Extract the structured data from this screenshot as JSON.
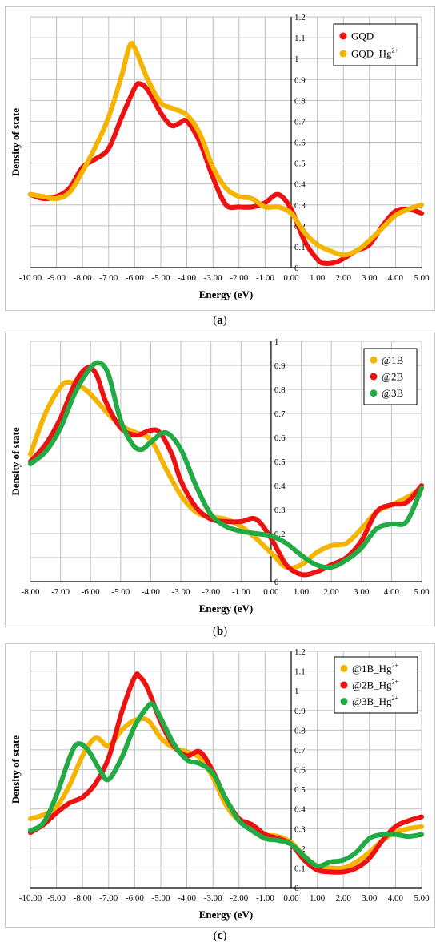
{
  "chart_data": [
    {
      "type": "line",
      "panel_label": "a",
      "xlabel": "Energy (eV)",
      "ylabel": "Density of state",
      "xlim": [
        -10,
        5
      ],
      "ylim": [
        0,
        1.2
      ],
      "xticks": [
        "-10.00",
        "-9.00",
        "-8.00",
        "-7.00",
        "-6.00",
        "-5.00",
        "-4.00",
        "-3.00",
        "-2.00",
        "-1.00",
        "0.00",
        "1.00",
        "2.00",
        "3.00",
        "4.00",
        "5.00"
      ],
      "yticks": [
        "0",
        "0.1",
        "0.2",
        "0.3",
        "0.4",
        "0.5",
        "0.6",
        "0.7",
        "0.8",
        "0.9",
        "1",
        "1.1",
        "1.2"
      ],
      "grid": true,
      "legend": "top-right",
      "series": [
        {
          "name": "GQD",
          "color": "#ee1111",
          "points": [
            [
              -10,
              0.35
            ],
            [
              -9.5,
              0.33
            ],
            [
              -9,
              0.34
            ],
            [
              -8.5,
              0.38
            ],
            [
              -8,
              0.48
            ],
            [
              -7.5,
              0.52
            ],
            [
              -7,
              0.57
            ],
            [
              -6.5,
              0.72
            ],
            [
              -6,
              0.86
            ],
            [
              -5.8,
              0.88
            ],
            [
              -5.5,
              0.85
            ],
            [
              -5,
              0.74
            ],
            [
              -4.6,
              0.68
            ],
            [
              -4.3,
              0.69
            ],
            [
              -4,
              0.7
            ],
            [
              -3.5,
              0.6
            ],
            [
              -3,
              0.43
            ],
            [
              -2.5,
              0.3
            ],
            [
              -2,
              0.29
            ],
            [
              -1.5,
              0.29
            ],
            [
              -1,
              0.31
            ],
            [
              -0.5,
              0.35
            ],
            [
              0,
              0.28
            ],
            [
              0.5,
              0.13
            ],
            [
              1,
              0.04
            ],
            [
              1.3,
              0.02
            ],
            [
              1.8,
              0.03
            ],
            [
              2.5,
              0.08
            ],
            [
              3,
              0.11
            ],
            [
              3.5,
              0.2
            ],
            [
              4,
              0.27
            ],
            [
              4.5,
              0.28
            ],
            [
              5,
              0.26
            ]
          ]
        },
        {
          "name": "GQD_Hg",
          "sup": "2+",
          "color": "#f5b400",
          "points": [
            [
              -10,
              0.35
            ],
            [
              -9.5,
              0.34
            ],
            [
              -9,
              0.33
            ],
            [
              -8.5,
              0.36
            ],
            [
              -8,
              0.46
            ],
            [
              -7.5,
              0.58
            ],
            [
              -7,
              0.72
            ],
            [
              -6.5,
              0.92
            ],
            [
              -6.2,
              1.06
            ],
            [
              -6,
              1.05
            ],
            [
              -5.5,
              0.9
            ],
            [
              -5,
              0.79
            ],
            [
              -4.5,
              0.76
            ],
            [
              -4,
              0.73
            ],
            [
              -3.5,
              0.64
            ],
            [
              -3,
              0.48
            ],
            [
              -2.5,
              0.38
            ],
            [
              -2,
              0.34
            ],
            [
              -1.5,
              0.33
            ],
            [
              -1,
              0.29
            ],
            [
              -0.5,
              0.29
            ],
            [
              0,
              0.26
            ],
            [
              0.5,
              0.17
            ],
            [
              1,
              0.11
            ],
            [
              1.5,
              0.08
            ],
            [
              2,
              0.06
            ],
            [
              2.5,
              0.08
            ],
            [
              3,
              0.13
            ],
            [
              3.5,
              0.19
            ],
            [
              4,
              0.25
            ],
            [
              4.5,
              0.28
            ],
            [
              5,
              0.3
            ]
          ]
        }
      ]
    },
    {
      "type": "line",
      "panel_label": "b",
      "xlabel": "Energy (eV)",
      "ylabel": "Density of state",
      "xlim": [
        -8,
        5
      ],
      "ylim": [
        0,
        1
      ],
      "xticks": [
        "-8.00",
        "-7.00",
        "-6.00",
        "-5.00",
        "-4.00",
        "-3.00",
        "-2.00",
        "-1.00",
        "0.00",
        "1.00",
        "2.00",
        "3.00",
        "4.00",
        "5.00"
      ],
      "yticks": [
        "0",
        "0.1",
        "0.2",
        "0.3",
        "0.4",
        "0.5",
        "0.6",
        "0.7",
        "0.8",
        "0.9",
        "1"
      ],
      "grid": true,
      "legend": "top-right",
      "series": [
        {
          "name": "@1B",
          "color": "#f5b400",
          "points": [
            [
              -8,
              0.53
            ],
            [
              -7.5,
              0.7
            ],
            [
              -7,
              0.81
            ],
            [
              -6.7,
              0.83
            ],
            [
              -6.3,
              0.81
            ],
            [
              -6,
              0.78
            ],
            [
              -5.5,
              0.71
            ],
            [
              -5,
              0.65
            ],
            [
              -4.5,
              0.62
            ],
            [
              -4,
              0.59
            ],
            [
              -3.5,
              0.47
            ],
            [
              -3,
              0.36
            ],
            [
              -2.5,
              0.29
            ],
            [
              -2,
              0.27
            ],
            [
              -1.5,
              0.26
            ],
            [
              -1,
              0.23
            ],
            [
              -0.5,
              0.18
            ],
            [
              0,
              0.12
            ],
            [
              0.5,
              0.06
            ],
            [
              1,
              0.07
            ],
            [
              1.5,
              0.12
            ],
            [
              2,
              0.15
            ],
            [
              2.5,
              0.16
            ],
            [
              3,
              0.22
            ],
            [
              3.5,
              0.29
            ],
            [
              4,
              0.32
            ],
            [
              4.5,
              0.35
            ],
            [
              5,
              0.39
            ]
          ]
        },
        {
          "name": "@2B",
          "color": "#ee1111",
          "points": [
            [
              -8,
              0.5
            ],
            [
              -7.5,
              0.57
            ],
            [
              -7,
              0.68
            ],
            [
              -6.5,
              0.83
            ],
            [
              -6.1,
              0.89
            ],
            [
              -5.8,
              0.86
            ],
            [
              -5.5,
              0.75
            ],
            [
              -5,
              0.64
            ],
            [
              -4.5,
              0.61
            ],
            [
              -4,
              0.63
            ],
            [
              -3.7,
              0.62
            ],
            [
              -3.3,
              0.53
            ],
            [
              -3,
              0.42
            ],
            [
              -2.5,
              0.31
            ],
            [
              -2,
              0.26
            ],
            [
              -1.5,
              0.25
            ],
            [
              -1,
              0.25
            ],
            [
              -0.5,
              0.26
            ],
            [
              0,
              0.18
            ],
            [
              0.5,
              0.07
            ],
            [
              1,
              0.03
            ],
            [
              1.5,
              0.04
            ],
            [
              2,
              0.07
            ],
            [
              2.5,
              0.1
            ],
            [
              3,
              0.17
            ],
            [
              3.5,
              0.29
            ],
            [
              4,
              0.32
            ],
            [
              4.5,
              0.33
            ],
            [
              5,
              0.4
            ]
          ]
        },
        {
          "name": "@3B",
          "color": "#22aa44",
          "points": [
            [
              -8,
              0.49
            ],
            [
              -7.5,
              0.54
            ],
            [
              -7,
              0.64
            ],
            [
              -6.5,
              0.79
            ],
            [
              -6,
              0.89
            ],
            [
              -5.7,
              0.91
            ],
            [
              -5.4,
              0.86
            ],
            [
              -5,
              0.67
            ],
            [
              -4.6,
              0.57
            ],
            [
              -4.3,
              0.55
            ],
            [
              -4,
              0.58
            ],
            [
              -3.5,
              0.62
            ],
            [
              -3,
              0.55
            ],
            [
              -2.5,
              0.4
            ],
            [
              -2,
              0.28
            ],
            [
              -1.5,
              0.23
            ],
            [
              -1,
              0.21
            ],
            [
              -0.5,
              0.2
            ],
            [
              0,
              0.19
            ],
            [
              0.5,
              0.16
            ],
            [
              1,
              0.11
            ],
            [
              1.5,
              0.07
            ],
            [
              2,
              0.06
            ],
            [
              2.5,
              0.09
            ],
            [
              3,
              0.14
            ],
            [
              3.5,
              0.22
            ],
            [
              4,
              0.24
            ],
            [
              4.5,
              0.25
            ],
            [
              5,
              0.39
            ]
          ]
        }
      ]
    },
    {
      "type": "line",
      "panel_label": "c",
      "xlabel": "Energy (eV)",
      "ylabel": "Density of state",
      "xlim": [
        -10,
        5
      ],
      "ylim": [
        0,
        1.2
      ],
      "xticks": [
        "-10.00",
        "-9.00",
        "-8.00",
        "-7.00",
        "-6.00",
        "-5.00",
        "-4.00",
        "-3.00",
        "-2.00",
        "-1.00",
        "0.00",
        "1.00",
        "2.00",
        "3.00",
        "4.00",
        "5.00"
      ],
      "yticks": [
        "0",
        "0.1",
        "0.2",
        "0.3",
        "0.4",
        "0.5",
        "0.6",
        "0.7",
        "0.8",
        "0.9",
        "1",
        "1.1",
        "1.2"
      ],
      "grid": true,
      "legend": "top-right",
      "series": [
        {
          "name": "@1B_Hg",
          "sup": "2+",
          "color": "#f5b400",
          "points": [
            [
              -10,
              0.35
            ],
            [
              -9.5,
              0.37
            ],
            [
              -9,
              0.41
            ],
            [
              -8.5,
              0.52
            ],
            [
              -8,
              0.67
            ],
            [
              -7.5,
              0.76
            ],
            [
              -7,
              0.72
            ],
            [
              -6.5,
              0.8
            ],
            [
              -6,
              0.85
            ],
            [
              -5.5,
              0.85
            ],
            [
              -5,
              0.76
            ],
            [
              -4.5,
              0.71
            ],
            [
              -4,
              0.69
            ],
            [
              -3.5,
              0.66
            ],
            [
              -3,
              0.56
            ],
            [
              -2.5,
              0.42
            ],
            [
              -2,
              0.34
            ],
            [
              -1.5,
              0.31
            ],
            [
              -1,
              0.27
            ],
            [
              -0.5,
              0.26
            ],
            [
              0,
              0.23
            ],
            [
              0.5,
              0.16
            ],
            [
              1,
              0.11
            ],
            [
              1.5,
              0.1
            ],
            [
              2,
              0.1
            ],
            [
              2.5,
              0.13
            ],
            [
              3,
              0.18
            ],
            [
              3.5,
              0.24
            ],
            [
              4,
              0.28
            ],
            [
              4.5,
              0.3
            ],
            [
              5,
              0.31
            ]
          ]
        },
        {
          "name": "@2B_Hg",
          "sup": "2+",
          "color": "#ee1111",
          "points": [
            [
              -10,
              0.28
            ],
            [
              -9.5,
              0.32
            ],
            [
              -9,
              0.38
            ],
            [
              -8.5,
              0.43
            ],
            [
              -8,
              0.46
            ],
            [
              -7.5,
              0.53
            ],
            [
              -7,
              0.66
            ],
            [
              -6.5,
              0.89
            ],
            [
              -6,
              1.07
            ],
            [
              -5.8,
              1.07
            ],
            [
              -5.5,
              1.01
            ],
            [
              -5,
              0.84
            ],
            [
              -4.5,
              0.72
            ],
            [
              -4,
              0.67
            ],
            [
              -3.5,
              0.69
            ],
            [
              -3,
              0.59
            ],
            [
              -2.5,
              0.45
            ],
            [
              -2,
              0.35
            ],
            [
              -1.5,
              0.32
            ],
            [
              -1,
              0.27
            ],
            [
              -0.5,
              0.25
            ],
            [
              0,
              0.22
            ],
            [
              0.5,
              0.14
            ],
            [
              1,
              0.09
            ],
            [
              1.5,
              0.08
            ],
            [
              2,
              0.08
            ],
            [
              2.5,
              0.1
            ],
            [
              3,
              0.15
            ],
            [
              3.5,
              0.24
            ],
            [
              4,
              0.31
            ],
            [
              4.5,
              0.34
            ],
            [
              5,
              0.36
            ]
          ]
        },
        {
          "name": "@3B_Hg",
          "sup": "2+",
          "color": "#22aa44",
          "points": [
            [
              -10,
              0.29
            ],
            [
              -9.5,
              0.33
            ],
            [
              -9,
              0.47
            ],
            [
              -8.5,
              0.66
            ],
            [
              -8.2,
              0.73
            ],
            [
              -7.8,
              0.7
            ],
            [
              -7.3,
              0.59
            ],
            [
              -7,
              0.55
            ],
            [
              -6.5,
              0.66
            ],
            [
              -6,
              0.82
            ],
            [
              -5.5,
              0.92
            ],
            [
              -5.3,
              0.93
            ],
            [
              -5,
              0.86
            ],
            [
              -4.5,
              0.73
            ],
            [
              -4,
              0.65
            ],
            [
              -3.5,
              0.63
            ],
            [
              -3,
              0.58
            ],
            [
              -2.5,
              0.45
            ],
            [
              -2,
              0.34
            ],
            [
              -1.5,
              0.29
            ],
            [
              -1,
              0.25
            ],
            [
              -0.5,
              0.24
            ],
            [
              0,
              0.22
            ],
            [
              0.5,
              0.16
            ],
            [
              1,
              0.11
            ],
            [
              1.5,
              0.13
            ],
            [
              2,
              0.14
            ],
            [
              2.5,
              0.18
            ],
            [
              3,
              0.25
            ],
            [
              3.5,
              0.27
            ],
            [
              4,
              0.27
            ],
            [
              4.5,
              0.26
            ],
            [
              5,
              0.27
            ]
          ]
        }
      ]
    }
  ]
}
